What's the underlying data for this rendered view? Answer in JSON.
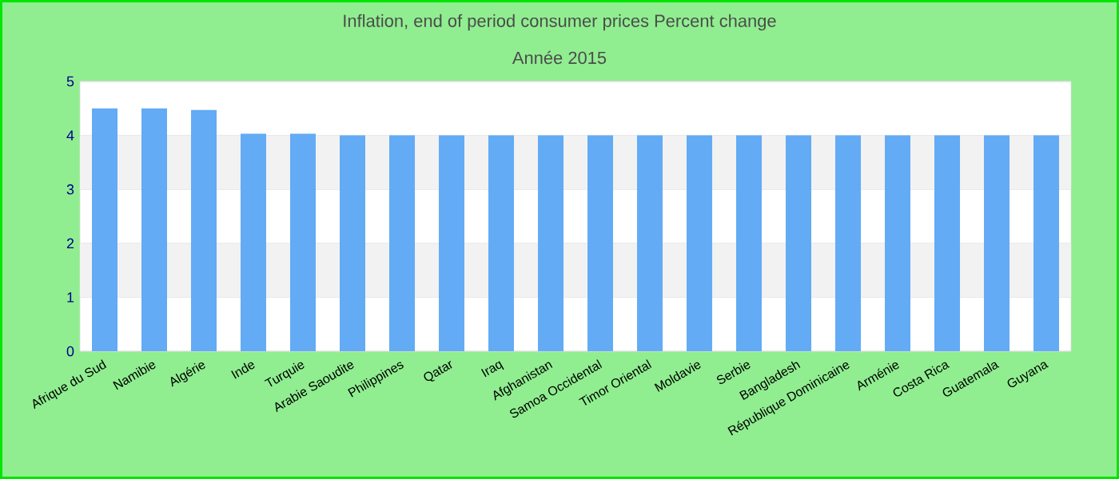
{
  "chart_data": {
    "type": "bar",
    "title": "Inflation, end of period consumer prices  Percent change",
    "subtitle": "Année 2015",
    "categories": [
      "Afrique du Sud",
      "Namibie",
      "Algérie",
      "Inde",
      "Turquie",
      "Arabie Saoudite",
      "Philippines",
      "Qatar",
      "Iraq",
      "Afghanistan",
      "Samoa Occidental",
      "Timor Oriental",
      "Moldavie",
      "Serbie",
      "Bangladesh",
      "République Dominicaine",
      "Arménie",
      "Costa Rica",
      "Guatemala",
      "Guyana"
    ],
    "values": [
      4.5,
      4.5,
      4.47,
      4.03,
      4.03,
      4.0,
      4.0,
      4.0,
      4.0,
      4.0,
      4.0,
      4.0,
      4.0,
      4.0,
      4.0,
      4.0,
      4.0,
      4.0,
      4.0,
      4.0
    ],
    "color": "#63abf5",
    "ylim": [
      0,
      5
    ],
    "yticks": [
      0,
      1,
      2,
      3,
      4,
      5
    ],
    "grid": "y"
  }
}
